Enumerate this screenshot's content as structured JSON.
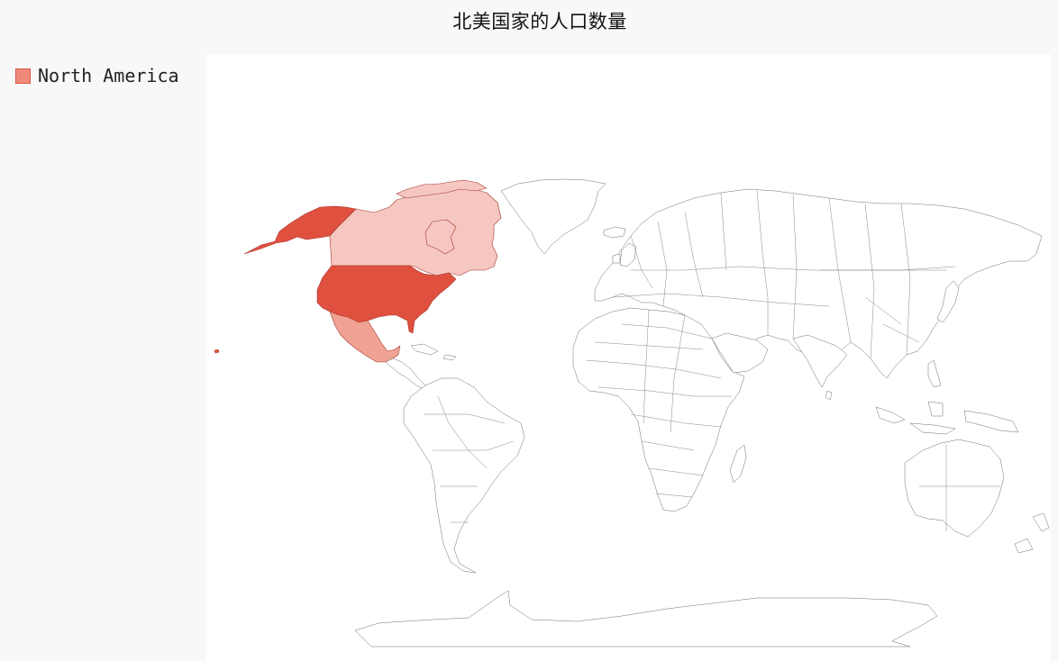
{
  "title": "北美国家的人口数量",
  "legend": {
    "items": [
      {
        "label": "North America",
        "color": "#ef8a7a"
      }
    ]
  },
  "map": {
    "type": "world-choropleth",
    "series_name": "North America",
    "countries": [
      {
        "code": "us",
        "fill": "#e0503f"
      },
      {
        "code": "ca",
        "fill": "#f5c7c0"
      },
      {
        "code": "mx",
        "fill": "#f0a295"
      }
    ],
    "other_country_fill": "#ffffff",
    "border_color": "#6f6f6f"
  }
}
